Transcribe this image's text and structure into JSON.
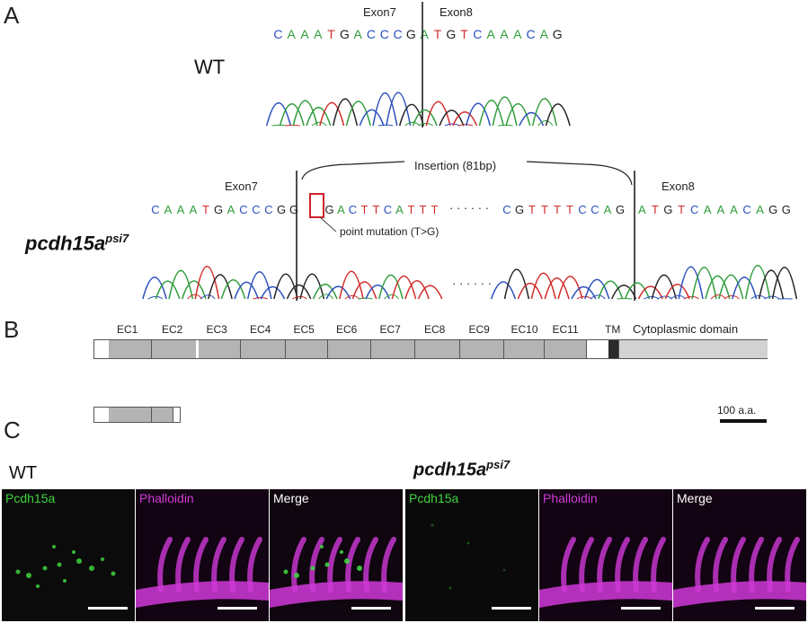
{
  "panels": {
    "A": "A",
    "B": "B",
    "C": "C"
  },
  "panel_a": {
    "wt": {
      "genotype": "WT",
      "exon_left": "Exon7",
      "exon_right": "Exon8",
      "sequence": "CAAATGACCCGATGTCAAACAG"
    },
    "mutant": {
      "genotype_base": "pcdh15a",
      "genotype_sup": "psi7",
      "exon_left": "Exon7",
      "exon_right": "Exon8",
      "insertion_label": "Insertion (81bp)",
      "seq_left": "CAAATGACCCGG",
      "seq_mid": "GACTTCATTT",
      "ellipsis": "· · · · · ·",
      "seq_ins_end": "CGTTTTCCAG",
      "seq_right": "ATGTCAAACAGG",
      "mutation_label": "point mutation (T>G)",
      "trace_ellipsis": "· · · · · ·"
    },
    "base_colors": {
      "A": "#2e9c3a",
      "C": "#2a4fbf",
      "G": "#222222",
      "T": "#d22a2a"
    }
  },
  "panel_b": {
    "domains": [
      "EC1",
      "EC2",
      "EC3",
      "EC4",
      "EC5",
      "EC6",
      "EC7",
      "EC8",
      "EC9",
      "EC10",
      "EC11"
    ],
    "tm_label": "TM",
    "cyto_label": "Cytoplasmic domain",
    "scale_label": "100 a.a."
  },
  "panel_c": {
    "wt_label": "WT",
    "mut_base": "pcdh15a",
    "mut_sup": "psi7",
    "channels": [
      "Pcdh15a",
      "Phalloidin",
      "Merge"
    ],
    "colors": {
      "pcdh15a": "#3fd43f",
      "phalloidin": "#d03ad8",
      "merge": "#ffffff"
    }
  }
}
